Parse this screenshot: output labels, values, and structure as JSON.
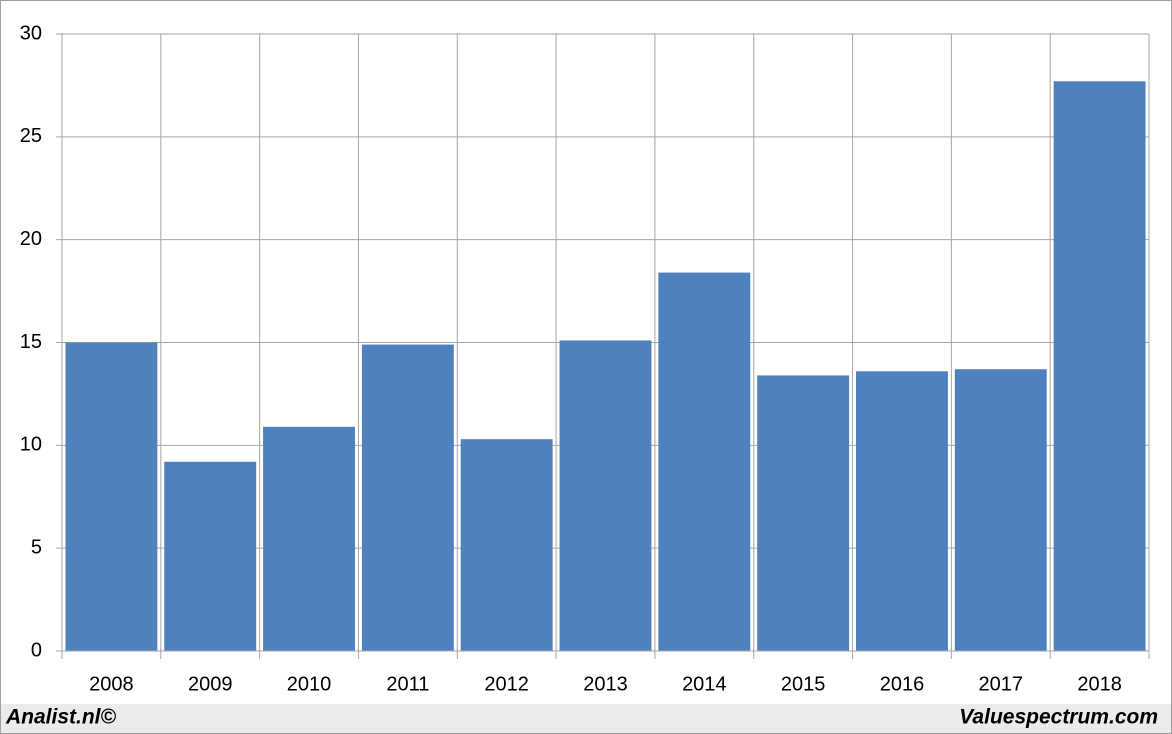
{
  "chart_data": {
    "type": "bar",
    "categories": [
      "2008",
      "2009",
      "2010",
      "2011",
      "2012",
      "2013",
      "2014",
      "2015",
      "2016",
      "2017",
      "2018"
    ],
    "values": [
      15.0,
      9.2,
      10.9,
      14.9,
      10.3,
      15.1,
      18.4,
      13.4,
      13.6,
      13.7,
      27.7
    ],
    "color": "#4f81bd",
    "ylim": [
      0,
      30
    ],
    "yticks": [
      0,
      5,
      10,
      15,
      20,
      25,
      30
    ],
    "grid": true,
    "annotations": [
      "Analist.nl©",
      "Valuespectrum.com"
    ]
  }
}
